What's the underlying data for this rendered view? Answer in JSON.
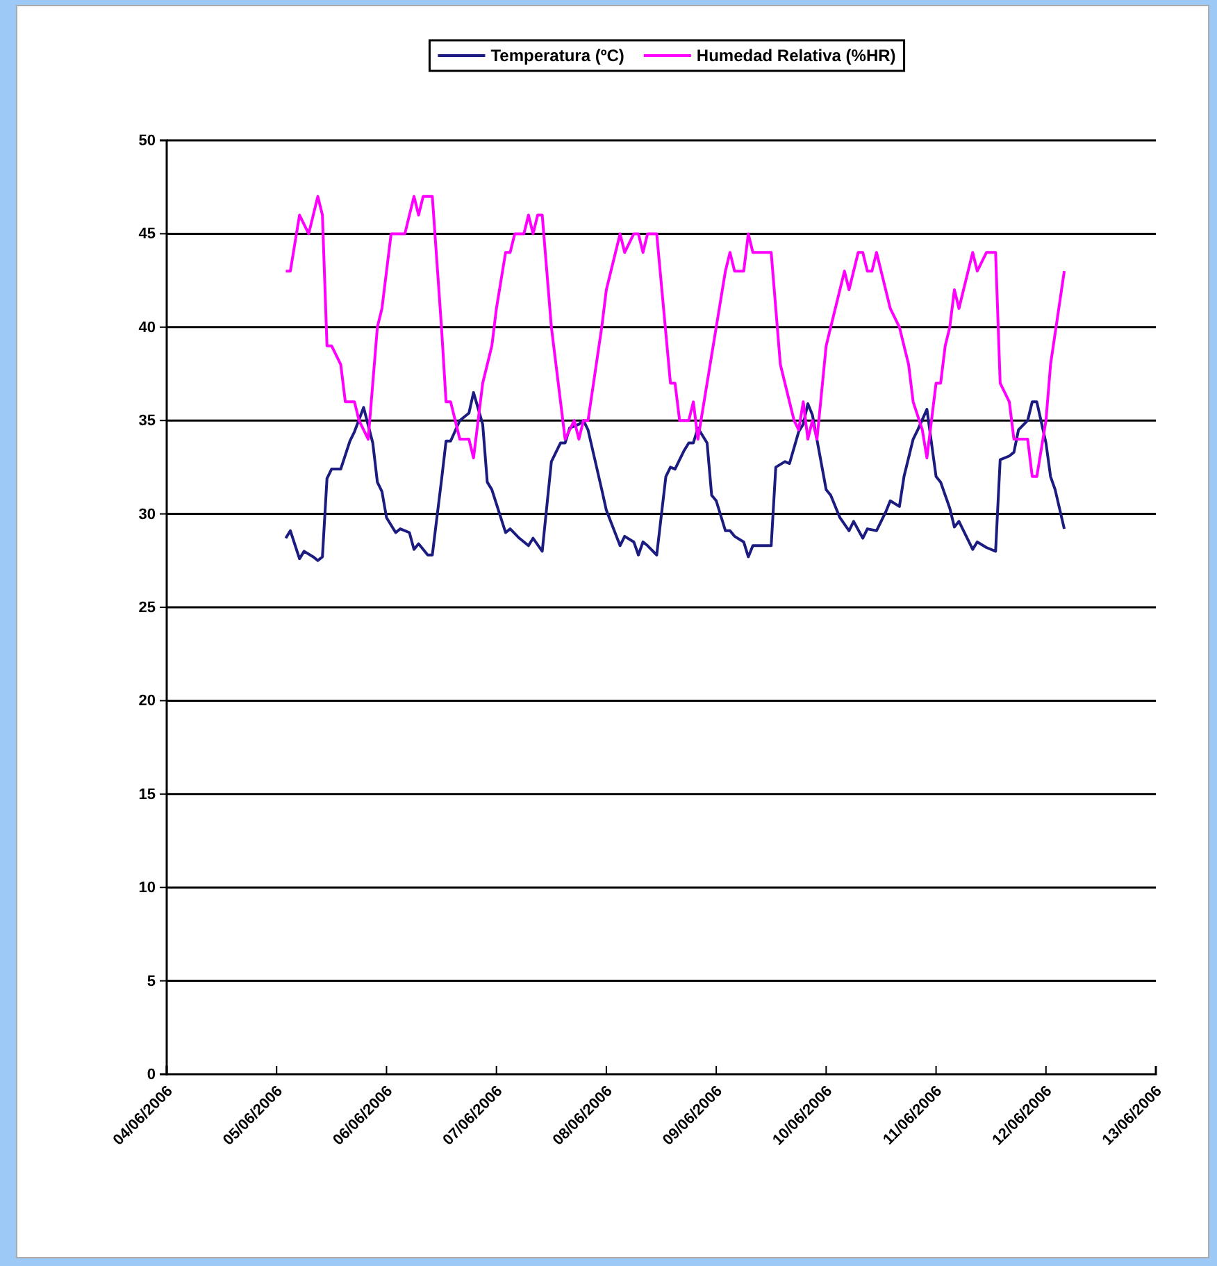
{
  "chart_data": {
    "type": "line",
    "legend": "top",
    "grid": "y",
    "marker": "none",
    "line_style": "solid",
    "xlim": [
      "2006-06-04",
      "2006-06-13"
    ],
    "xticks": [
      {
        "value": "2006-06-04",
        "label": "04/06/2006"
      },
      {
        "value": "2006-06-05",
        "label": "05/06/2006"
      },
      {
        "value": "2006-06-06",
        "label": "06/06/2006"
      },
      {
        "value": "2006-06-07",
        "label": "07/06/2006"
      },
      {
        "value": "2006-06-08",
        "label": "08/06/2006"
      },
      {
        "value": "2006-06-09",
        "label": "09/06/2006"
      },
      {
        "value": "2006-06-10",
        "label": "10/06/2006"
      },
      {
        "value": "2006-06-11",
        "label": "11/06/2006"
      },
      {
        "value": "2006-06-12",
        "label": "12/06/2006"
      },
      {
        "value": "2006-06-13",
        "label": "13/06/2006"
      }
    ],
    "ylim": [
      0,
      50
    ],
    "yticks": [
      0,
      5,
      10,
      15,
      20,
      25,
      30,
      35,
      40,
      45,
      50
    ],
    "series": [
      {
        "name": "Temperatura (ºC)",
        "color": "#1c1c80",
        "x": [
          "2006-06-05T02:00",
          "2006-06-05T03:00",
          "2006-06-05T05:00",
          "2006-06-05T06:00",
          "2006-06-05T08:00",
          "2006-06-05T09:00",
          "2006-06-05T10:00",
          "2006-06-05T11:00",
          "2006-06-05T12:00",
          "2006-06-05T14:00",
          "2006-06-05T16:00",
          "2006-06-05T17:00",
          "2006-06-05T19:00",
          "2006-06-05T21:00",
          "2006-06-05T22:00",
          "2006-06-05T23:00",
          "2006-06-06T00:00",
          "2006-06-06T02:00",
          "2006-06-06T03:00",
          "2006-06-06T05:00",
          "2006-06-06T06:00",
          "2006-06-06T07:00",
          "2006-06-06T09:00",
          "2006-06-06T10:00",
          "2006-06-06T12:00",
          "2006-06-06T13:00",
          "2006-06-06T14:00",
          "2006-06-06T16:00",
          "2006-06-06T18:00",
          "2006-06-06T19:00",
          "2006-06-06T21:00",
          "2006-06-06T22:00",
          "2006-06-06T23:00",
          "2006-06-07T02:00",
          "2006-06-07T03:00",
          "2006-06-07T05:00",
          "2006-06-07T07:00",
          "2006-06-07T08:00",
          "2006-06-07T10:00",
          "2006-06-07T12:00",
          "2006-06-07T14:00",
          "2006-06-07T15:00",
          "2006-06-07T16:00",
          "2006-06-07T18:00",
          "2006-06-07T19:00",
          "2006-06-07T20:00",
          "2006-06-07T23:00",
          "2006-06-08T00:00",
          "2006-06-08T03:00",
          "2006-06-08T04:00",
          "2006-06-08T06:00",
          "2006-06-08T07:00",
          "2006-06-08T08:00",
          "2006-06-08T09:00",
          "2006-06-08T11:00",
          "2006-06-08T13:00",
          "2006-06-08T14:00",
          "2006-06-08T15:00",
          "2006-06-08T17:00",
          "2006-06-08T18:00",
          "2006-06-08T19:00",
          "2006-06-08T20:00",
          "2006-06-08T22:00",
          "2006-06-08T23:00",
          "2006-06-09T00:00",
          "2006-06-09T02:00",
          "2006-06-09T03:00",
          "2006-06-09T04:00",
          "2006-06-09T06:00",
          "2006-06-09T07:00",
          "2006-06-09T08:00",
          "2006-06-09T12:00",
          "2006-06-09T13:00",
          "2006-06-09T15:00",
          "2006-06-09T16:00",
          "2006-06-09T18:00",
          "2006-06-09T19:00",
          "2006-06-09T20:00",
          "2006-06-09T21:00",
          "2006-06-10T00:00",
          "2006-06-10T01:00",
          "2006-06-10T03:00",
          "2006-06-10T05:00",
          "2006-06-10T06:00",
          "2006-06-10T08:00",
          "2006-06-10T09:00",
          "2006-06-10T11:00",
          "2006-06-10T13:00",
          "2006-06-10T14:00",
          "2006-06-10T16:00",
          "2006-06-10T17:00",
          "2006-06-10T19:00",
          "2006-06-10T20:00",
          "2006-06-10T22:00",
          "2006-06-11T00:00",
          "2006-06-11T01:00",
          "2006-06-11T03:00",
          "2006-06-11T04:00",
          "2006-06-11T05:00",
          "2006-06-11T08:00",
          "2006-06-11T09:00",
          "2006-06-11T11:00",
          "2006-06-11T13:00",
          "2006-06-11T14:00",
          "2006-06-11T16:00",
          "2006-06-11T17:00",
          "2006-06-11T18:00",
          "2006-06-11T20:00",
          "2006-06-11T21:00",
          "2006-06-11T22:00",
          "2006-06-12T00:00",
          "2006-06-12T01:00",
          "2006-06-12T02:00",
          "2006-06-12T04:00"
        ],
        "values": [
          28.7,
          29.1,
          27.6,
          28.0,
          27.7,
          27.5,
          27.7,
          31.9,
          32.4,
          32.4,
          33.9,
          34.4,
          35.7,
          33.8,
          31.7,
          31.2,
          29.8,
          29.0,
          29.2,
          29.0,
          28.1,
          28.4,
          27.8,
          27.8,
          31.8,
          33.9,
          33.9,
          35.0,
          35.4,
          36.5,
          34.8,
          31.7,
          31.3,
          29.0,
          29.2,
          28.7,
          28.3,
          28.7,
          28.0,
          32.8,
          33.8,
          33.8,
          34.6,
          34.8,
          35.0,
          34.5,
          31.3,
          30.2,
          28.3,
          28.8,
          28.5,
          27.8,
          28.5,
          28.3,
          27.8,
          32.0,
          32.5,
          32.4,
          33.4,
          33.8,
          33.8,
          34.6,
          33.8,
          31.0,
          30.7,
          29.1,
          29.1,
          28.8,
          28.5,
          27.7,
          28.3,
          28.3,
          32.5,
          32.8,
          32.7,
          34.4,
          34.8,
          35.9,
          35.3,
          31.3,
          31.0,
          29.8,
          29.1,
          29.6,
          28.7,
          29.2,
          29.1,
          30.1,
          30.7,
          30.4,
          32.0,
          34.0,
          34.5,
          35.6,
          32.0,
          31.7,
          30.3,
          29.3,
          29.6,
          28.1,
          28.5,
          28.2,
          28.0,
          32.9,
          33.1,
          33.3,
          34.5,
          35.0,
          36.0,
          36.0,
          33.8,
          32.0,
          31.3,
          29.2
        ]
      },
      {
        "name": "Humedad Relativa (%HR)",
        "color": "#ff00ff",
        "x": [
          "2006-06-05T02:00",
          "2006-06-05T03:00",
          "2006-06-05T05:00",
          "2006-06-05T07:00",
          "2006-06-05T09:00",
          "2006-06-05T10:00",
          "2006-06-05T11:00",
          "2006-06-05T12:00",
          "2006-06-05T14:00",
          "2006-06-05T15:00",
          "2006-06-05T17:00",
          "2006-06-05T18:00",
          "2006-06-05T20:00",
          "2006-06-05T22:00",
          "2006-06-05T23:00",
          "2006-06-06T01:00",
          "2006-06-06T04:00",
          "2006-06-06T06:00",
          "2006-06-06T07:00",
          "2006-06-06T08:00",
          "2006-06-06T10:00",
          "2006-06-06T12:00",
          "2006-06-06T13:00",
          "2006-06-06T14:00",
          "2006-06-06T16:00",
          "2006-06-06T18:00",
          "2006-06-06T19:00",
          "2006-06-06T21:00",
          "2006-06-06T23:00",
          "2006-06-07T00:00",
          "2006-06-07T02:00",
          "2006-06-07T03:00",
          "2006-06-07T04:00",
          "2006-06-07T06:00",
          "2006-06-07T07:00",
          "2006-06-07T08:00",
          "2006-06-07T09:00",
          "2006-06-07T10:00",
          "2006-06-07T12:00",
          "2006-06-07T14:00",
          "2006-06-07T15:00",
          "2006-06-07T17:00",
          "2006-06-07T18:00",
          "2006-06-07T19:00",
          "2006-06-07T20:00",
          "2006-06-07T23:00",
          "2006-06-08T00:00",
          "2006-06-08T03:00",
          "2006-06-08T04:00",
          "2006-06-08T06:00",
          "2006-06-08T07:00",
          "2006-06-08T08:00",
          "2006-06-08T09:00",
          "2006-06-08T11:00",
          "2006-06-08T14:00",
          "2006-06-08T15:00",
          "2006-06-08T16:00",
          "2006-06-08T18:00",
          "2006-06-08T19:00",
          "2006-06-08T20:00",
          "2006-06-08T22:00",
          "2006-06-09T00:00",
          "2006-06-09T02:00",
          "2006-06-09T03:00",
          "2006-06-09T04:00",
          "2006-06-09T06:00",
          "2006-06-09T07:00",
          "2006-06-09T08:00",
          "2006-06-09T12:00",
          "2006-06-09T14:00",
          "2006-06-09T17:00",
          "2006-06-09T18:00",
          "2006-06-09T19:00",
          "2006-06-09T20:00",
          "2006-06-09T21:00",
          "2006-06-09T22:00",
          "2006-06-10T00:00",
          "2006-06-10T01:00",
          "2006-06-10T04:00",
          "2006-06-10T05:00",
          "2006-06-10T07:00",
          "2006-06-10T08:00",
          "2006-06-10T09:00",
          "2006-06-10T10:00",
          "2006-06-10T11:00",
          "2006-06-10T13:00",
          "2006-06-10T14:00",
          "2006-06-10T16:00",
          "2006-06-10T18:00",
          "2006-06-10T19:00",
          "2006-06-10T21:00",
          "2006-06-10T22:00",
          "2006-06-11T00:00",
          "2006-06-11T01:00",
          "2006-06-11T02:00",
          "2006-06-11T03:00",
          "2006-06-11T04:00",
          "2006-06-11T05:00",
          "2006-06-11T08:00",
          "2006-06-11T09:00",
          "2006-06-11T11:00",
          "2006-06-11T13:00",
          "2006-06-11T14:00",
          "2006-06-11T16:00",
          "2006-06-11T17:00",
          "2006-06-11T20:00",
          "2006-06-11T21:00",
          "2006-06-11T22:00",
          "2006-06-12T00:00",
          "2006-06-12T01:00",
          "2006-06-12T04:00"
        ],
        "values": [
          43,
          43,
          46,
          45,
          47,
          46,
          39,
          39,
          38,
          36,
          36,
          35,
          34,
          40,
          41,
          45,
          45,
          47,
          46,
          47,
          47,
          40,
          36,
          36,
          34,
          34,
          33,
          37,
          39,
          41,
          44,
          44,
          45,
          45,
          46,
          45,
          46,
          46,
          40,
          36,
          34,
          35,
          34,
          35,
          35,
          40,
          42,
          45,
          44,
          45,
          45,
          44,
          45,
          45,
          37,
          37,
          35,
          35,
          36,
          34,
          37,
          40,
          43,
          44,
          43,
          43,
          45,
          44,
          44,
          38,
          35,
          34.5,
          36,
          34,
          35,
          34,
          39,
          40,
          43,
          42,
          44,
          44,
          43,
          43,
          44,
          42,
          41,
          40,
          38,
          36,
          34.5,
          33,
          37,
          37,
          39,
          40,
          42,
          41,
          44,
          43,
          44,
          44,
          37,
          36,
          34,
          34,
          32,
          32,
          35,
          38,
          43
        ]
      }
    ]
  }
}
